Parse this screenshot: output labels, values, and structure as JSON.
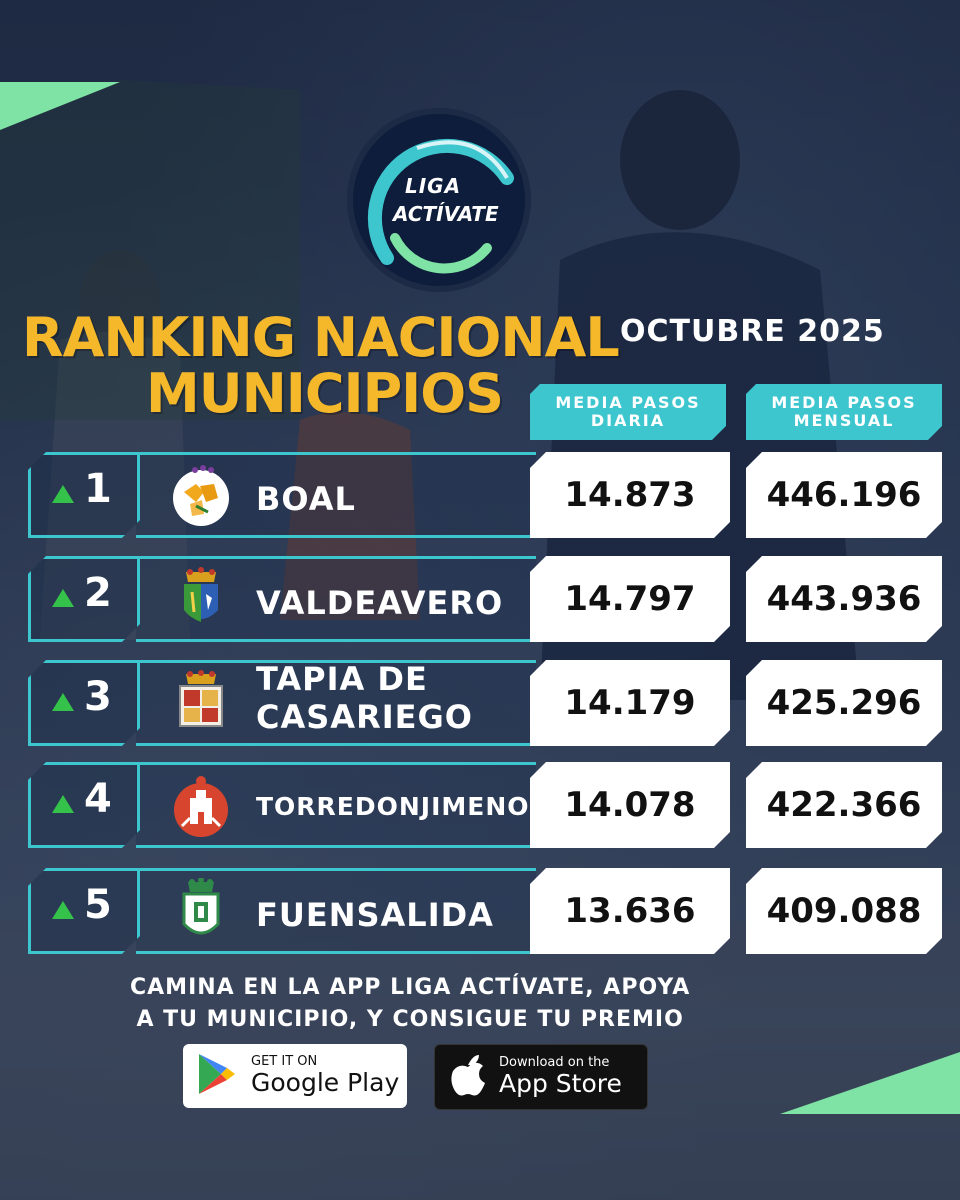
{
  "logo": {
    "line1": "LIGA",
    "line2": "ACTÍVATE"
  },
  "header": {
    "title_line1": "RANKING NACIONAL",
    "title_line2": "MUNICIPIOS",
    "month": "OCTUBRE 2025"
  },
  "columns": [
    {
      "line1": "MEDIA PASOS",
      "line2": "DIARIA"
    },
    {
      "line1": "MEDIA PASOS",
      "line2": "MENSUAL"
    }
  ],
  "rows": [
    {
      "rank": "1",
      "name_line1": "BOAL",
      "name_line2": "",
      "daily": "14.873",
      "monthly": "446.196",
      "trend": "up",
      "crest": "boal-crest-icon"
    },
    {
      "rank": "2",
      "name_line1": "VALDEAVERO",
      "name_line2": "",
      "daily": "14.797",
      "monthly": "443.936",
      "trend": "up",
      "crest": "valdeavero-crest-icon"
    },
    {
      "rank": "3",
      "name_line1": "TAPIA DE",
      "name_line2": "CASARIEGO",
      "daily": "14.179",
      "monthly": "425.296",
      "trend": "up",
      "crest": "tapia-crest-icon"
    },
    {
      "rank": "4",
      "name_line1": "TORREDONJIMENO",
      "name_line2": "",
      "daily": "14.078",
      "monthly": "422.366",
      "trend": "up",
      "crest": "torredonjimeno-crest-icon"
    },
    {
      "rank": "5",
      "name_line1": "FUENSALIDA",
      "name_line2": "",
      "daily": "13.636",
      "monthly": "409.088",
      "trend": "up",
      "crest": "fuensalida-crest-icon"
    }
  ],
  "cta": {
    "line1": "CAMINA EN LA APP LIGA ACTÍVATE, APOYA",
    "line2": "A TU MUNICIPIO, Y CONSIGUE TU PREMIO"
  },
  "stores": {
    "google_small": "GET IT ON",
    "google_big": "Google Play",
    "apple_small": "Download on the",
    "apple_big": "App Store"
  },
  "colors": {
    "accent": "#3ec6cf",
    "title": "#f5b82a",
    "trend": "#35c24a",
    "corner": "#7ee3a4"
  }
}
